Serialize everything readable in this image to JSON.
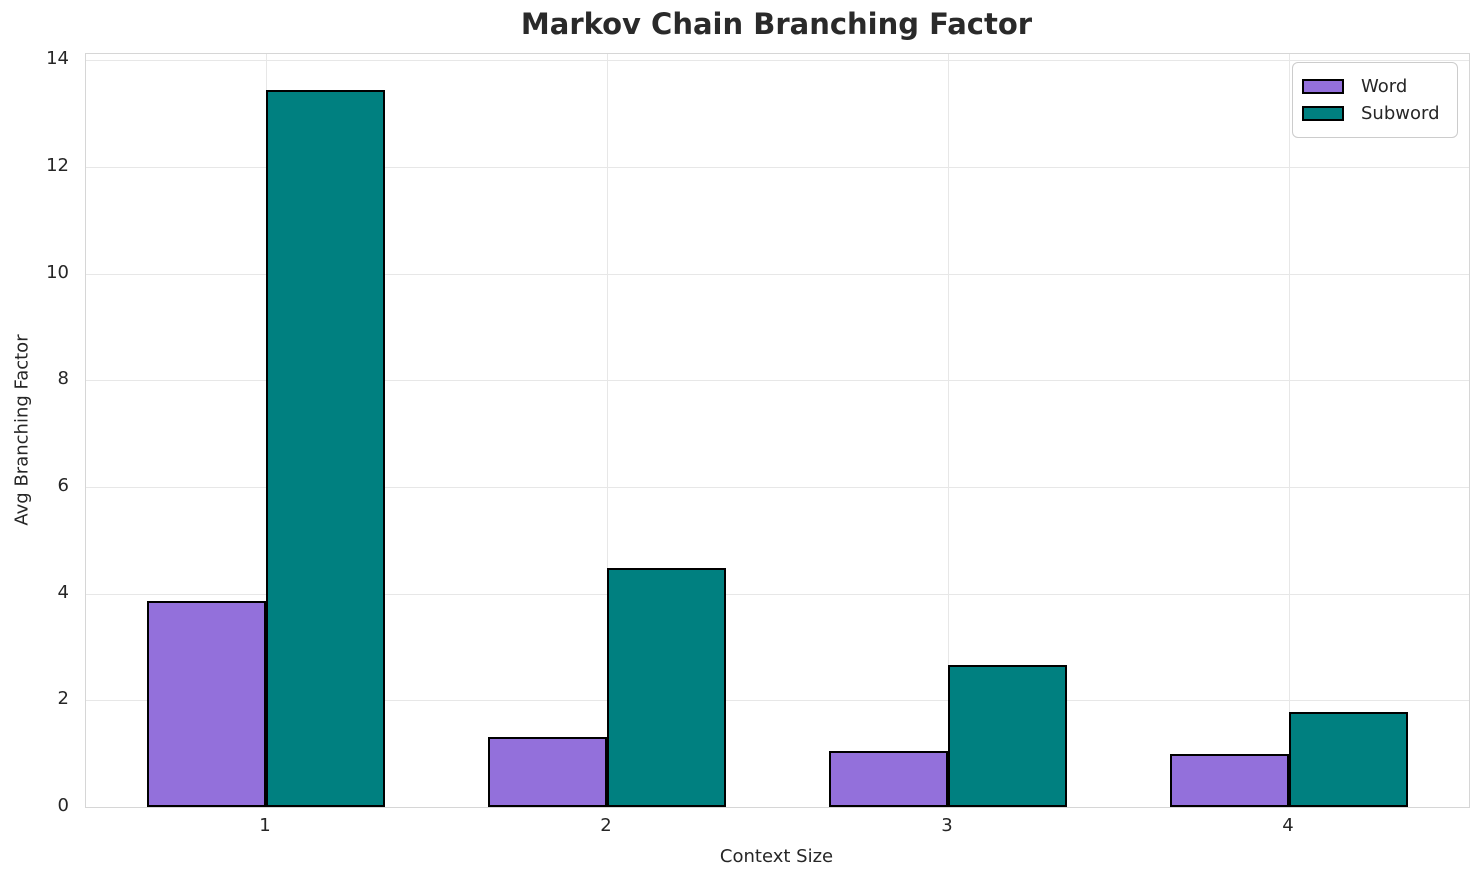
{
  "chart_data": {
    "type": "bar",
    "title": "Markov Chain Branching Factor",
    "xlabel": "Context Size",
    "ylabel": "Avg Branching Factor",
    "categories": [
      "1",
      "2",
      "3",
      "4"
    ],
    "series": [
      {
        "name": "Word",
        "color": "#9370DB",
        "values": [
          3.87,
          1.31,
          1.05,
          1.0
        ]
      },
      {
        "name": "Subword",
        "color": "#008080",
        "values": [
          13.45,
          4.49,
          2.67,
          1.79
        ]
      }
    ],
    "bar_edge_color": "#000000",
    "bar_width": 0.35,
    "ylim": [
      0,
      14.12
    ],
    "xlim": [
      -0.528,
      3.528
    ],
    "yticks": [
      0,
      2,
      4,
      6,
      8,
      10,
      12,
      14
    ],
    "grid": true,
    "legend_position": "upper right"
  },
  "colors": {
    "background": "#ffffff",
    "text": "#262626",
    "title_text": "#2a2a2a",
    "gridline": "#e7e7e7",
    "spine": "#d6d6d6"
  }
}
